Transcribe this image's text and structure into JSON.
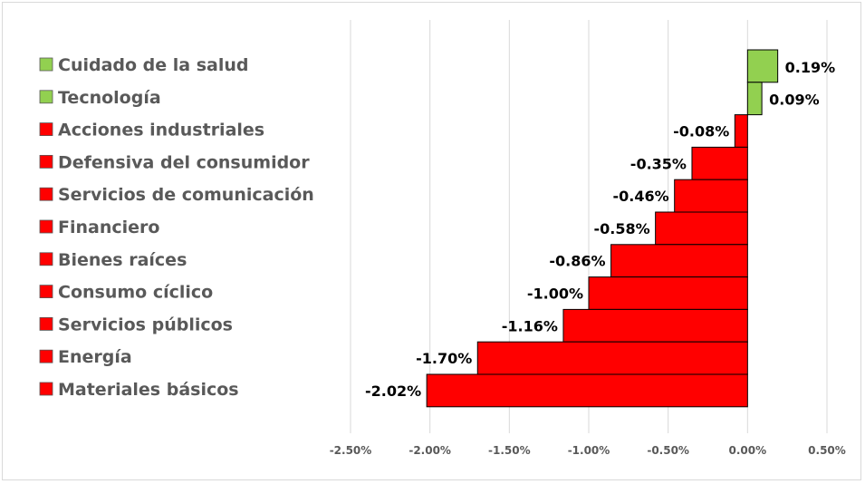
{
  "chart_data": {
    "type": "bar",
    "orientation": "horizontal",
    "title": "",
    "xlabel": "",
    "ylabel": "",
    "xlim": [
      -2.5,
      0.5
    ],
    "grid": true,
    "legend_position": "left",
    "categories": [
      "Cuidado de la salud",
      "Tecnología",
      "Acciones industriales",
      "Defensiva del consumidor",
      "Servicios de comunicación",
      "Financiero",
      "Bienes raíces",
      "Consumo cíclico",
      "Servicios públicos",
      "Energía",
      "Materiales básicos"
    ],
    "values": [
      0.19,
      0.09,
      -0.08,
      -0.35,
      -0.46,
      -0.58,
      -0.86,
      -1.0,
      -1.16,
      -1.7,
      -2.02
    ],
    "value_labels": [
      "0.19%",
      "0.09%",
      "-0.08%",
      "-0.35%",
      "-0.46%",
      "-0.58%",
      "-0.86%",
      "-1.00%",
      "-1.16%",
      "-1.70%",
      "-2.02%"
    ],
    "ticks": [
      -2.5,
      -2.0,
      -1.5,
      -1.0,
      -0.5,
      0.0,
      0.5
    ],
    "tick_labels": [
      "-2.50%",
      "-2.00%",
      "-1.50%",
      "-1.00%",
      "-0.50%",
      "0.00%",
      "0.50%"
    ],
    "colors": {
      "positive": "#92d050",
      "negative": "#ff0000",
      "outline": "#000000",
      "grid": "#d9d9d9"
    }
  }
}
